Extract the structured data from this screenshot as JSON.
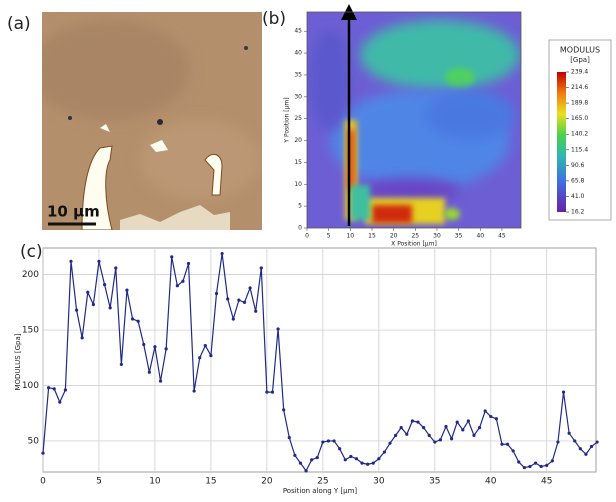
{
  "panels": {
    "a": {
      "label": "(a)",
      "scale_bar": "10 µm"
    },
    "b": {
      "label": "(b)",
      "xlabel": "X Position [µm]",
      "ylabel": "Y Position [µm]",
      "xlim": [
        0,
        49.4
      ],
      "ylim": [
        0,
        49.4
      ],
      "xticks": [
        0,
        5,
        10,
        15,
        20,
        25,
        30,
        35,
        40,
        45
      ],
      "yticks": [
        0,
        5,
        10,
        15,
        20,
        25,
        30,
        35,
        40,
        45
      ],
      "colorbar": {
        "title": "MODULUS",
        "unit": "[Gpa]",
        "clim": [
          16.2,
          239.4
        ],
        "ticks": [
          239.4,
          214.6,
          189.8,
          {
            "value": 165,
            "label": "165.0"
          },
          140.2,
          115.4,
          90.6,
          65.8,
          {
            "value": 41,
            "label": "41.0"
          },
          16.2
        ]
      }
    }
  },
  "chart_data": {
    "type": "line",
    "label": "(c)",
    "xlabel": "Position along Y [µm]",
    "ylabel": "MODULUS [Gpa]",
    "color": "#1f2a8a",
    "grid": true,
    "xlim": [
      0,
      49.4
    ],
    "ylim": [
      22,
      224
    ],
    "xticks": [
      0,
      5,
      10,
      15,
      20,
      25,
      30,
      35,
      40,
      45
    ],
    "yticks": [
      50,
      100,
      150,
      200
    ],
    "x": [
      0,
      0.5,
      1,
      1.5,
      2,
      2.5,
      3,
      3.5,
      4,
      4.5,
      5,
      5.5,
      6,
      6.5,
      7,
      7.5,
      8,
      8.5,
      9,
      9.5,
      10,
      10.5,
      11,
      11.5,
      12,
      12.5,
      13,
      13.5,
      14,
      14.5,
      15,
      15.5,
      16,
      16.5,
      17,
      17.5,
      18,
      18.5,
      19,
      19.5,
      20,
      20.5,
      21,
      21.5,
      22,
      22.5,
      23,
      23.5,
      24,
      24.5,
      25,
      25.5,
      26,
      26.5,
      27,
      27.5,
      28,
      28.5,
      29,
      29.5,
      30,
      30.5,
      31,
      31.5,
      32,
      32.5,
      33,
      33.5,
      34,
      34.5,
      35,
      35.5,
      36,
      36.5,
      37,
      37.5,
      38,
      38.5,
      39,
      39.5,
      40,
      40.5,
      41,
      41.5,
      42,
      42.5,
      43,
      43.5,
      44,
      44.5,
      45,
      45.5,
      46,
      46.5,
      47,
      47.5,
      48,
      48.5,
      49,
      49.5
    ],
    "values": [
      39,
      98,
      97,
      85,
      96,
      212,
      168,
      143,
      184,
      173,
      212,
      191,
      170,
      206,
      119,
      186,
      160,
      158,
      137,
      112,
      135,
      104,
      133,
      216,
      190,
      194,
      210,
      95,
      125,
      136,
      127,
      183,
      219,
      178,
      160,
      177,
      175,
      188,
      167,
      206,
      94,
      94,
      151,
      78,
      53,
      37,
      30,
      23,
      33,
      35,
      49,
      50,
      50,
      43,
      33,
      36,
      34,
      30,
      29,
      30,
      34,
      40,
      48,
      55,
      62,
      56,
      68,
      67,
      62,
      55,
      49,
      51,
      63,
      52,
      67,
      60,
      68,
      55,
      62,
      77,
      72,
      70,
      47,
      47,
      41,
      31,
      26,
      27,
      30,
      27,
      28,
      32,
      49,
      94,
      57,
      50,
      43,
      38,
      45,
      49
    ]
  }
}
